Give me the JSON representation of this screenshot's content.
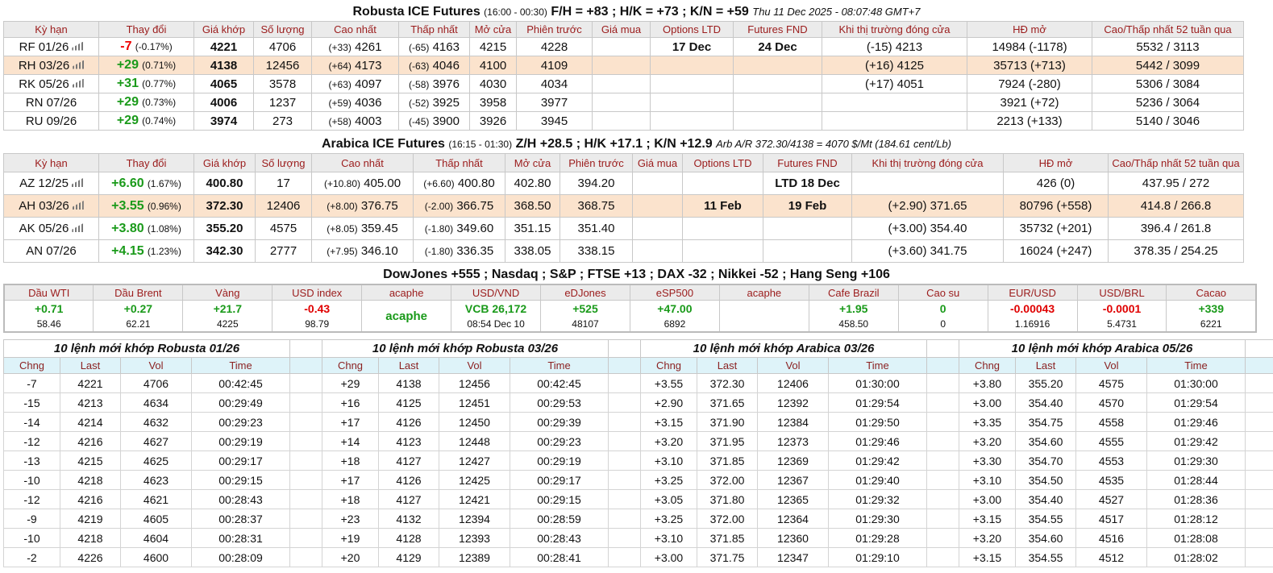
{
  "robusta": {
    "title": "Robusta ICE Futures",
    "hours": "(16:00 - 00:30)",
    "spreads": "F/H = +83 ; H/K = +73 ; K/N = +59",
    "time": "Thu 11 Dec 2025 - 08:07:48 GMT+7",
    "headers": [
      "Kỳ hạn",
      "Thay đổi",
      "Giá khớp",
      "Số lượng",
      "Cao nhất",
      "Thấp nhất",
      "Mở cửa",
      "Phiên trước",
      "Giá mua",
      "Options LTD",
      "Futures FND",
      "Khi thị trường đóng cửa",
      "HĐ mở",
      "Cao/Thấp nhất 52 tuần qua"
    ],
    "rows": [
      {
        "code": "RF 01/26",
        "chart": true,
        "chg": "-7",
        "pct": "(-0.17%)",
        "dir": "down",
        "last": "4221",
        "vol": "4706",
        "hi_chg": "(+33)",
        "hi": "4261",
        "lo_chg": "(-65)",
        "lo": "4163",
        "open": "4215",
        "prev": "4228",
        "bid": "",
        "opt": "17 Dec",
        "fnd": "24 Dec",
        "close": "(-15) 4213",
        "oi": "14984 (-1178)",
        "hl52": "5532 / 3113"
      },
      {
        "code": "RH 03/26",
        "chart": true,
        "chg": "+29",
        "pct": "(0.71%)",
        "dir": "up",
        "last": "4138",
        "vol": "12456",
        "hi_chg": "(+64)",
        "hi": "4173",
        "lo_chg": "(-63)",
        "lo": "4046",
        "open": "4100",
        "prev": "4109",
        "bid": "",
        "opt": "",
        "fnd": "",
        "close": "(+16) 4125",
        "oi": "35713 (+713)",
        "hl52": "5442 / 3099",
        "hl": true
      },
      {
        "code": "RK 05/26",
        "chart": true,
        "chg": "+31",
        "pct": "(0.77%)",
        "dir": "up",
        "last": "4065",
        "vol": "3578",
        "hi_chg": "(+63)",
        "hi": "4097",
        "lo_chg": "(-58)",
        "lo": "3976",
        "open": "4030",
        "prev": "4034",
        "bid": "",
        "opt": "",
        "fnd": "",
        "close": "(+17) 4051",
        "oi": "7924 (-280)",
        "hl52": "5306 / 3084"
      },
      {
        "code": "RN 07/26",
        "chart": false,
        "chg": "+29",
        "pct": "(0.73%)",
        "dir": "up",
        "last": "4006",
        "vol": "1237",
        "hi_chg": "(+59)",
        "hi": "4036",
        "lo_chg": "(-52)",
        "lo": "3925",
        "open": "3958",
        "prev": "3977",
        "bid": "",
        "opt": "",
        "fnd": "",
        "close": "",
        "oi": "3921 (+72)",
        "hl52": "5236 / 3064"
      },
      {
        "code": "RU 09/26",
        "chart": false,
        "chg": "+29",
        "pct": "(0.74%)",
        "dir": "up",
        "last": "3974",
        "vol": "273",
        "hi_chg": "(+58)",
        "hi": "4003",
        "lo_chg": "(-45)",
        "lo": "3900",
        "open": "3926",
        "prev": "3945",
        "bid": "",
        "opt": "",
        "fnd": "",
        "close": "",
        "oi": "2213 (+133)",
        "hl52": "5140 / 3046"
      }
    ]
  },
  "arabica": {
    "title": "Arabica ICE Futures",
    "hours": "(16:15 - 01:30)",
    "spreads": "Z/H +28.5 ; H/K +17.1 ; K/N +12.9",
    "arb": "Arb A/R 372.30/4138 = 4070 $/Mt (184.61 cent/Lb)",
    "headers": [
      "Kỳ hạn",
      "Thay đổi",
      "Giá khớp",
      "Số lượng",
      "Cao nhất",
      "Thấp nhất",
      "Mở cửa",
      "Phiên trước",
      "Giá mua",
      "Options LTD",
      "Futures FND",
      "Khi thị trường đóng cửa",
      "HĐ mở",
      "Cao/Thấp nhất 52 tuần qua"
    ],
    "rows": [
      {
        "code": "AZ 12/25",
        "chart": true,
        "chg": "+6.60",
        "pct": "(1.67%)",
        "dir": "up",
        "last": "400.80",
        "vol": "17",
        "hi_chg": "(+10.80)",
        "hi": "405.00",
        "lo_chg": "(+6.60)",
        "lo": "400.80",
        "open": "402.80",
        "prev": "394.20",
        "bid": "",
        "opt": "",
        "fnd": "LTD 18 Dec",
        "close": "",
        "oi": "426 (0)",
        "hl52": "437.95 / 272"
      },
      {
        "code": "AH 03/26",
        "chart": true,
        "chg": "+3.55",
        "pct": "(0.96%)",
        "dir": "up",
        "last": "372.30",
        "vol": "12406",
        "hi_chg": "(+8.00)",
        "hi": "376.75",
        "lo_chg": "(-2.00)",
        "lo": "366.75",
        "open": "368.50",
        "prev": "368.75",
        "bid": "",
        "opt": "11 Feb",
        "fnd": "19 Feb",
        "close": "(+2.90) 371.65",
        "oi": "80796 (+558)",
        "hl52": "414.8 / 266.8",
        "hl": true
      },
      {
        "code": "AK 05/26",
        "chart": true,
        "chg": "+3.80",
        "pct": "(1.08%)",
        "dir": "up",
        "last": "355.20",
        "vol": "4575",
        "hi_chg": "(+8.05)",
        "hi": "359.45",
        "lo_chg": "(-1.80)",
        "lo": "349.60",
        "open": "351.15",
        "prev": "351.40",
        "bid": "",
        "opt": "",
        "fnd": "",
        "close": "(+3.00) 354.40",
        "oi": "35732 (+201)",
        "hl52": "396.4 / 261.8"
      },
      {
        "code": "AN 07/26",
        "chart": false,
        "chg": "+4.15",
        "pct": "(1.23%)",
        "dir": "up",
        "last": "342.30",
        "vol": "2777",
        "hi_chg": "(+7.95)",
        "hi": "346.10",
        "lo_chg": "(-1.80)",
        "lo": "336.35",
        "open": "338.05",
        "prev": "338.15",
        "bid": "",
        "opt": "",
        "fnd": "",
        "close": "(+3.60) 341.75",
        "oi": "16024 (+247)",
        "hl52": "378.35 / 254.25"
      }
    ]
  },
  "indices_line": "DowJones +555 ; Nasdaq ; S&P ; FTSE +13 ; DAX -32 ; Nikkei -52 ; Hang Seng +106",
  "markets": [
    {
      "label": "Dầu WTI",
      "value": "+0.71",
      "sub": "58.46",
      "dir": "up"
    },
    {
      "label": "Dầu Brent",
      "value": "+0.27",
      "sub": "62.21",
      "dir": "up"
    },
    {
      "label": "Vàng",
      "value": "+21.7",
      "sub": "4225",
      "dir": "up"
    },
    {
      "label": "USD index",
      "value": "-0.43",
      "sub": "98.79",
      "dir": "down"
    },
    {
      "label": "acaphe",
      "value": "acaphe",
      "sub": "",
      "dir": "up"
    },
    {
      "label": "USD/VND",
      "value": "VCB 26,172",
      "sub": "08:54 Dec 10",
      "dir": "up"
    },
    {
      "label": "eDJones",
      "value": "+525",
      "sub": "48107",
      "dir": "up"
    },
    {
      "label": "eSP500",
      "value": "+47.00",
      "sub": "6892",
      "dir": "up"
    },
    {
      "label": "acaphe",
      "value": "",
      "sub": "",
      "dir": "up"
    },
    {
      "label": "Cafe Brazil",
      "value": "+1.95",
      "sub": "458.50",
      "dir": "up"
    },
    {
      "label": "Cao su",
      "value": "0",
      "sub": "0",
      "dir": "up"
    },
    {
      "label": "EUR/USD",
      "value": "-0.00043",
      "sub": "1.16916",
      "dir": "down"
    },
    {
      "label": "USD/BRL",
      "value": "-0.0001",
      "sub": "5.4731",
      "dir": "down"
    },
    {
      "label": "Cacao",
      "value": "+339",
      "sub": "6221",
      "dir": "up"
    }
  ],
  "trades_headers": [
    "Chng",
    "Last",
    "Vol",
    "Time"
  ],
  "trades": [
    {
      "title": "10 lệnh mới khớp Robusta 01/26",
      "rows": [
        [
          "-7",
          "4221",
          "4706",
          "00:42:45"
        ],
        [
          "-15",
          "4213",
          "4634",
          "00:29:49"
        ],
        [
          "-14",
          "4214",
          "4632",
          "00:29:23"
        ],
        [
          "-12",
          "4216",
          "4627",
          "00:29:19"
        ],
        [
          "-13",
          "4215",
          "4625",
          "00:29:17"
        ],
        [
          "-10",
          "4218",
          "4623",
          "00:29:15"
        ],
        [
          "-12",
          "4216",
          "4621",
          "00:28:43"
        ],
        [
          "-9",
          "4219",
          "4605",
          "00:28:37"
        ],
        [
          "-10",
          "4218",
          "4604",
          "00:28:31"
        ],
        [
          "-2",
          "4226",
          "4600",
          "00:28:09"
        ]
      ]
    },
    {
      "title": "10 lệnh mới khớp Robusta 03/26",
      "rows": [
        [
          "+29",
          "4138",
          "12456",
          "00:42:45"
        ],
        [
          "+16",
          "4125",
          "12451",
          "00:29:53"
        ],
        [
          "+17",
          "4126",
          "12450",
          "00:29:39"
        ],
        [
          "+14",
          "4123",
          "12448",
          "00:29:23"
        ],
        [
          "+18",
          "4127",
          "12427",
          "00:29:19"
        ],
        [
          "+17",
          "4126",
          "12425",
          "00:29:17"
        ],
        [
          "+18",
          "4127",
          "12421",
          "00:29:15"
        ],
        [
          "+23",
          "4132",
          "12394",
          "00:28:59"
        ],
        [
          "+19",
          "4128",
          "12393",
          "00:28:43"
        ],
        [
          "+20",
          "4129",
          "12389",
          "00:28:41"
        ]
      ]
    },
    {
      "title": "10 lệnh mới khớp Arabica 03/26",
      "rows": [
        [
          "+3.55",
          "372.30",
          "12406",
          "01:30:00"
        ],
        [
          "+2.90",
          "371.65",
          "12392",
          "01:29:54"
        ],
        [
          "+3.15",
          "371.90",
          "12384",
          "01:29:50"
        ],
        [
          "+3.20",
          "371.95",
          "12373",
          "01:29:46"
        ],
        [
          "+3.10",
          "371.85",
          "12369",
          "01:29:42"
        ],
        [
          "+3.25",
          "372.00",
          "12367",
          "01:29:40"
        ],
        [
          "+3.05",
          "371.80",
          "12365",
          "01:29:32"
        ],
        [
          "+3.25",
          "372.00",
          "12364",
          "01:29:30"
        ],
        [
          "+3.10",
          "371.85",
          "12360",
          "01:29:28"
        ],
        [
          "+3.00",
          "371.75",
          "12347",
          "01:29:10"
        ]
      ]
    },
    {
      "title": "10 lệnh mới khớp Arabica 05/26",
      "rows": [
        [
          "+3.80",
          "355.20",
          "4575",
          "01:30:00"
        ],
        [
          "+3.00",
          "354.40",
          "4570",
          "01:29:54"
        ],
        [
          "+3.35",
          "354.75",
          "4558",
          "01:29:46"
        ],
        [
          "+3.20",
          "354.60",
          "4555",
          "01:29:42"
        ],
        [
          "+3.30",
          "354.70",
          "4553",
          "01:29:30"
        ],
        [
          "+3.10",
          "354.50",
          "4535",
          "01:28:44"
        ],
        [
          "+3.00",
          "354.40",
          "4527",
          "01:28:36"
        ],
        [
          "+3.15",
          "354.55",
          "4517",
          "01:28:12"
        ],
        [
          "+3.20",
          "354.60",
          "4516",
          "01:28:08"
        ],
        [
          "+3.15",
          "354.55",
          "4512",
          "01:28:02"
        ]
      ]
    }
  ],
  "colors": {
    "up": "#1a9a1a",
    "down": "#e00000",
    "header_text": "#9b1c1c",
    "highlight_row": "#fbe3cd",
    "trade_header_bg": "#def3f9"
  }
}
